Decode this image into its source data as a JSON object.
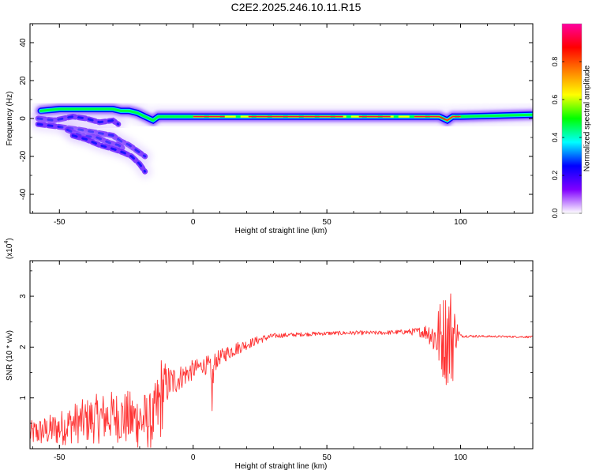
{
  "title": "C2E2.2025.246.10.11.R15",
  "chart_data": [
    {
      "type": "heatmap",
      "name": "spectrogram",
      "xlabel": "Height of straight line (km)",
      "ylabel": "Frequency (Hz)",
      "xlim": [
        -61,
        127
      ],
      "ylim": [
        -50,
        50
      ],
      "xticks": [
        -50,
        0,
        50,
        100
      ],
      "yticks": [
        -40,
        -20,
        0,
        20,
        40
      ],
      "colorbar": {
        "label": "Normalized spectral amplitude",
        "range": [
          0,
          1
        ],
        "ticks": [
          "0.0",
          "0.2",
          "0.4",
          "0.6",
          "0.8"
        ],
        "colors": [
          "#ffffff",
          "#8000ff",
          "#0000ff",
          "#00ffff",
          "#00ff00",
          "#ffff00",
          "#ff8000",
          "#ff0000",
          "#ff00a0"
        ]
      },
      "ridges": [
        {
          "x": [
            -57,
            -50,
            -40,
            -35,
            -30,
            -27,
            -24,
            -21,
            -18,
            -15,
            -13,
            -10,
            0,
            10,
            20,
            50,
            80,
            92,
            95,
            97,
            100,
            127
          ],
          "freq": [
            4,
            5,
            5,
            5,
            5,
            4,
            4,
            3,
            1,
            -1,
            1,
            1,
            1,
            1,
            1,
            1,
            1,
            1,
            -1,
            1,
            1,
            2
          ]
        },
        {
          "x": [
            -58,
            -52,
            -45,
            -40,
            -35,
            -30,
            -28
          ],
          "freq": [
            0,
            -1,
            1,
            0,
            -2,
            -1,
            -3
          ]
        },
        {
          "x": [
            -58,
            -52,
            -47,
            -42,
            -38,
            -34,
            -30,
            -27,
            -24,
            -21,
            -18
          ],
          "freq": [
            -3,
            -4,
            -5,
            -6,
            -7,
            -8,
            -9,
            -12,
            -14,
            -17,
            -20
          ]
        },
        {
          "x": [
            -47,
            -42,
            -36,
            -31,
            -28,
            -26
          ],
          "freq": [
            -6,
            -9,
            -10,
            -13,
            -14,
            -16
          ]
        },
        {
          "x": [
            -45,
            -40,
            -35,
            -30,
            -26,
            -23,
            -20,
            -18
          ],
          "freq": [
            -9,
            -11,
            -14,
            -16,
            -18,
            -20,
            -24,
            -28
          ]
        }
      ]
    },
    {
      "type": "line",
      "name": "snr",
      "color": "#ff3333",
      "xlabel": "Height of straight line (km)",
      "ylabel": "SNR (10 * v/v)",
      "multiplier_label": "(x10",
      "multiplier_exp": "4",
      "multiplier_close": ")",
      "xlim": [
        -61,
        127
      ],
      "ylim": [
        0,
        3.7
      ],
      "xticks": [
        -50,
        0,
        50,
        100
      ],
      "yticks": [
        1,
        2,
        3
      ],
      "envelope": {
        "x": [
          -61,
          -55,
          -50,
          -45,
          -40,
          -35,
          -30,
          -25,
          -20,
          -15,
          -13,
          -12,
          -11,
          -10,
          -5,
          0,
          4,
          6,
          7,
          8,
          10,
          15,
          20,
          25,
          30,
          40,
          50,
          60,
          70,
          80,
          85,
          88,
          90,
          92,
          94,
          95,
          96,
          97,
          98,
          100,
          110,
          127
        ],
        "mean": [
          0.3,
          0.35,
          0.4,
          0.5,
          0.55,
          0.6,
          0.65,
          0.6,
          0.55,
          0.55,
          0.8,
          1.0,
          1.2,
          1.25,
          1.4,
          1.55,
          1.65,
          1.6,
          1.1,
          1.7,
          1.8,
          1.95,
          2.05,
          2.15,
          2.22,
          2.25,
          2.27,
          2.28,
          2.28,
          2.3,
          2.3,
          2.3,
          2.2,
          2.2,
          2.2,
          2.2,
          2.2,
          2.2,
          2.3,
          2.22,
          2.21,
          2.2
        ],
        "noise": [
          0.25,
          0.3,
          0.35,
          0.4,
          0.45,
          0.5,
          0.5,
          0.55,
          0.6,
          0.55,
          0.8,
          0.9,
          0.6,
          0.4,
          0.25,
          0.2,
          0.15,
          0.25,
          0.6,
          0.2,
          0.15,
          0.15,
          0.1,
          0.08,
          0.05,
          0.04,
          0.04,
          0.04,
          0.04,
          0.05,
          0.1,
          0.2,
          0.4,
          0.7,
          0.9,
          1.0,
          1.1,
          1.0,
          0.4,
          0.03,
          0.02,
          0.02
        ]
      }
    }
  ]
}
